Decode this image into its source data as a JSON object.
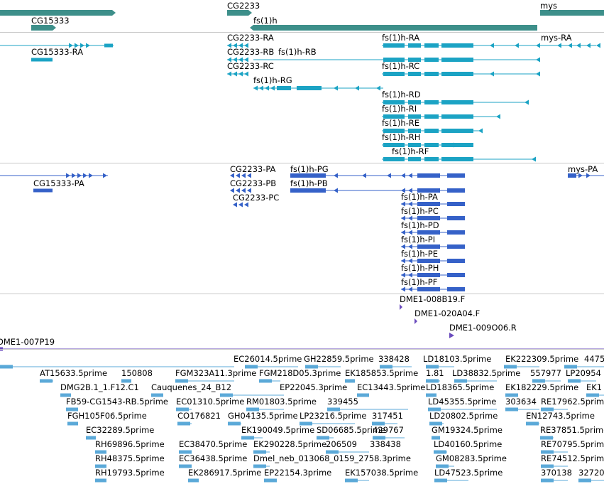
{
  "colors": {
    "gene": "#3d8f8a",
    "transcript": "#1ba3c4",
    "protein": "#3561c8",
    "clone": "#6a4bbd",
    "est": "#5ba9d8",
    "separator": "#c8c8c8"
  },
  "tracks": {
    "genes": {
      "features": [
        {
          "label": "CG2233"
        },
        {
          "label": "mys"
        },
        {
          "label": "CG15333"
        },
        {
          "label": "fs(1)h"
        }
      ]
    },
    "transcripts": {
      "features": [
        {
          "label": "CG2233-RA"
        },
        {
          "label": "fs(1)h-RA"
        },
        {
          "label": "mys-RA"
        },
        {
          "label": "CG15333-RA"
        },
        {
          "label": "CG2233-RB"
        },
        {
          "label": "fs(1)h-RB"
        },
        {
          "label": "CG2233-RC"
        },
        {
          "label": "fs(1)h-RC"
        },
        {
          "label": "fs(1)h-RG"
        },
        {
          "label": "fs(1)h-RD"
        },
        {
          "label": "fs(1)h-RI"
        },
        {
          "label": "fs(1)h-RE"
        },
        {
          "label": "fs(1)h-RH"
        },
        {
          "label": "fs(1)h-RF"
        }
      ]
    },
    "proteins": {
      "features": [
        {
          "label": "CG2233-PA"
        },
        {
          "label": "fs(1)h-PG"
        },
        {
          "label": "mys-PA"
        },
        {
          "label": "CG15333-PA"
        },
        {
          "label": "CG2233-PB"
        },
        {
          "label": "fs(1)h-PB"
        },
        {
          "label": "CG2233-PC"
        },
        {
          "label": "fs(1)h-PA"
        },
        {
          "label": "fs(1)h-PC"
        },
        {
          "label": "fs(1)h-PD"
        },
        {
          "label": "fs(1)h-PI"
        },
        {
          "label": "fs(1)h-PE"
        },
        {
          "label": "fs(1)h-PH"
        },
        {
          "label": "fs(1)h-PF"
        }
      ]
    },
    "clones": {
      "features": [
        {
          "label": "DME1-008B19.F"
        },
        {
          "label": "DME1-020A04.F"
        },
        {
          "label": "DME1-009O06.R"
        },
        {
          "label": "DME1-007P19"
        }
      ]
    },
    "ests": {
      "features": [
        {
          "label": "EC26014.5prime"
        },
        {
          "label": "GH22859.5prime"
        },
        {
          "label": "338428"
        },
        {
          "label": "LD18103.5prime"
        },
        {
          "label": "EK222309.5prime"
        },
        {
          "label": "4475"
        },
        {
          "label": "AT15633.5prime"
        },
        {
          "label": "150808"
        },
        {
          "label": "FGM323A11.3prime"
        },
        {
          "label": "FGM218D05.3prime"
        },
        {
          "label": "EK185853.5prime"
        },
        {
          "label": "1.81"
        },
        {
          "label": "LD38832.5prime"
        },
        {
          "label": "557977"
        },
        {
          "label": "LP20954"
        },
        {
          "label": "DMG2B.1_1.F12.C1"
        },
        {
          "label": "Cauquenes_24_B12"
        },
        {
          "label": "EP22045.3prime"
        },
        {
          "label": "EC13443.5prime"
        },
        {
          "label": "LD18365.5prime"
        },
        {
          "label": "EK182229.5prime"
        },
        {
          "label": "EK1"
        },
        {
          "label": "FB59-CG1543-RB.5prime"
        },
        {
          "label": "EC01310.5prime"
        },
        {
          "label": "RM01803.5prime"
        },
        {
          "label": "339455"
        },
        {
          "label": "LD45355.5prime"
        },
        {
          "label": "303634"
        },
        {
          "label": "RE17962.5prime"
        },
        {
          "label": "FGH105F06.5prime"
        },
        {
          "label": "CO176821"
        },
        {
          "label": "GH04135.5prime"
        },
        {
          "label": "LP23216.5prime"
        },
        {
          "label": "317451"
        },
        {
          "label": "LD20802.5prime"
        },
        {
          "label": "EN12743.5prime"
        },
        {
          "label": "EC32289.5prime"
        },
        {
          "label": "EK190049.5prime"
        },
        {
          "label": "SD06685.5prime"
        },
        {
          "label": "429767"
        },
        {
          "label": "GM19324.5prime"
        },
        {
          "label": "RE37851.5prime"
        },
        {
          "label": "RH69896.5prime"
        },
        {
          "label": "EC38470.5prime"
        },
        {
          "label": "EK290228.5prime"
        },
        {
          "label": "206509"
        },
        {
          "label": "338438"
        },
        {
          "label": "LD40160.5prime"
        },
        {
          "label": "RE70795.5prime"
        },
        {
          "label": "RH48375.5prime"
        },
        {
          "label": "EC36438.5prime"
        },
        {
          "label": "Dmel_neb_013068_0159_2758.3prime"
        },
        {
          "label": "GM08283.5prime"
        },
        {
          "label": "RE74512.5prime"
        },
        {
          "label": "RH19793.5prime"
        },
        {
          "label": "EK286917.5prime"
        },
        {
          "label": "EP22154.3prime"
        },
        {
          "label": "EK157038.5prime"
        },
        {
          "label": "LD47523.5prime"
        },
        {
          "label": "370138"
        },
        {
          "label": "32720"
        }
      ]
    }
  }
}
